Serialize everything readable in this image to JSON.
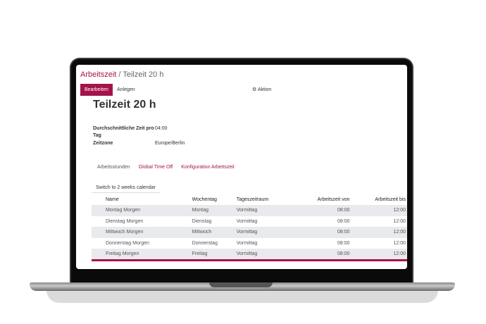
{
  "breadcrumb": {
    "parent": "Arbeitszeit",
    "separator": "/",
    "current": "Teilzeit 20 h"
  },
  "toolbar": {
    "edit": "Bearbeiten",
    "create": "Anlegen",
    "action": "Aktion"
  },
  "record": {
    "title": "Teilzeit 20 h",
    "fields": [
      {
        "label": "Durchschnittliche Zeit pro Tag",
        "value": "04:00"
      },
      {
        "label": "Zeitzone",
        "value": "Europe/Berlin"
      }
    ]
  },
  "tabs": [
    "Arbeitsstunden",
    "Global Time Off",
    "Konfiguration Arbeitszeit"
  ],
  "switch_label": "Switch to 2 weeks calendar",
  "table": {
    "headers": [
      "Name",
      "Wochentag",
      "Tageszeitraum",
      "Arbeitszeit von",
      "Arbeitszeit bis"
    ],
    "rows": [
      [
        "Montag Morgen",
        "Montag",
        "Vormittag",
        "08:00",
        "12:00"
      ],
      [
        "Dienstag Morgen",
        "Dienstag",
        "Vormittag",
        "08:00",
        "12:00"
      ],
      [
        "Mittwoch Morgen",
        "Mittwoch",
        "Vormittag",
        "08:00",
        "12:00"
      ],
      [
        "Donnerstag Morgen",
        "Donnerstag",
        "Vormittag",
        "08:00",
        "12:00"
      ],
      [
        "Freitag Morgen",
        "Freitag",
        "Vormittag",
        "08:00",
        "12:00"
      ]
    ]
  },
  "colors": {
    "accent": "#a5134b"
  }
}
